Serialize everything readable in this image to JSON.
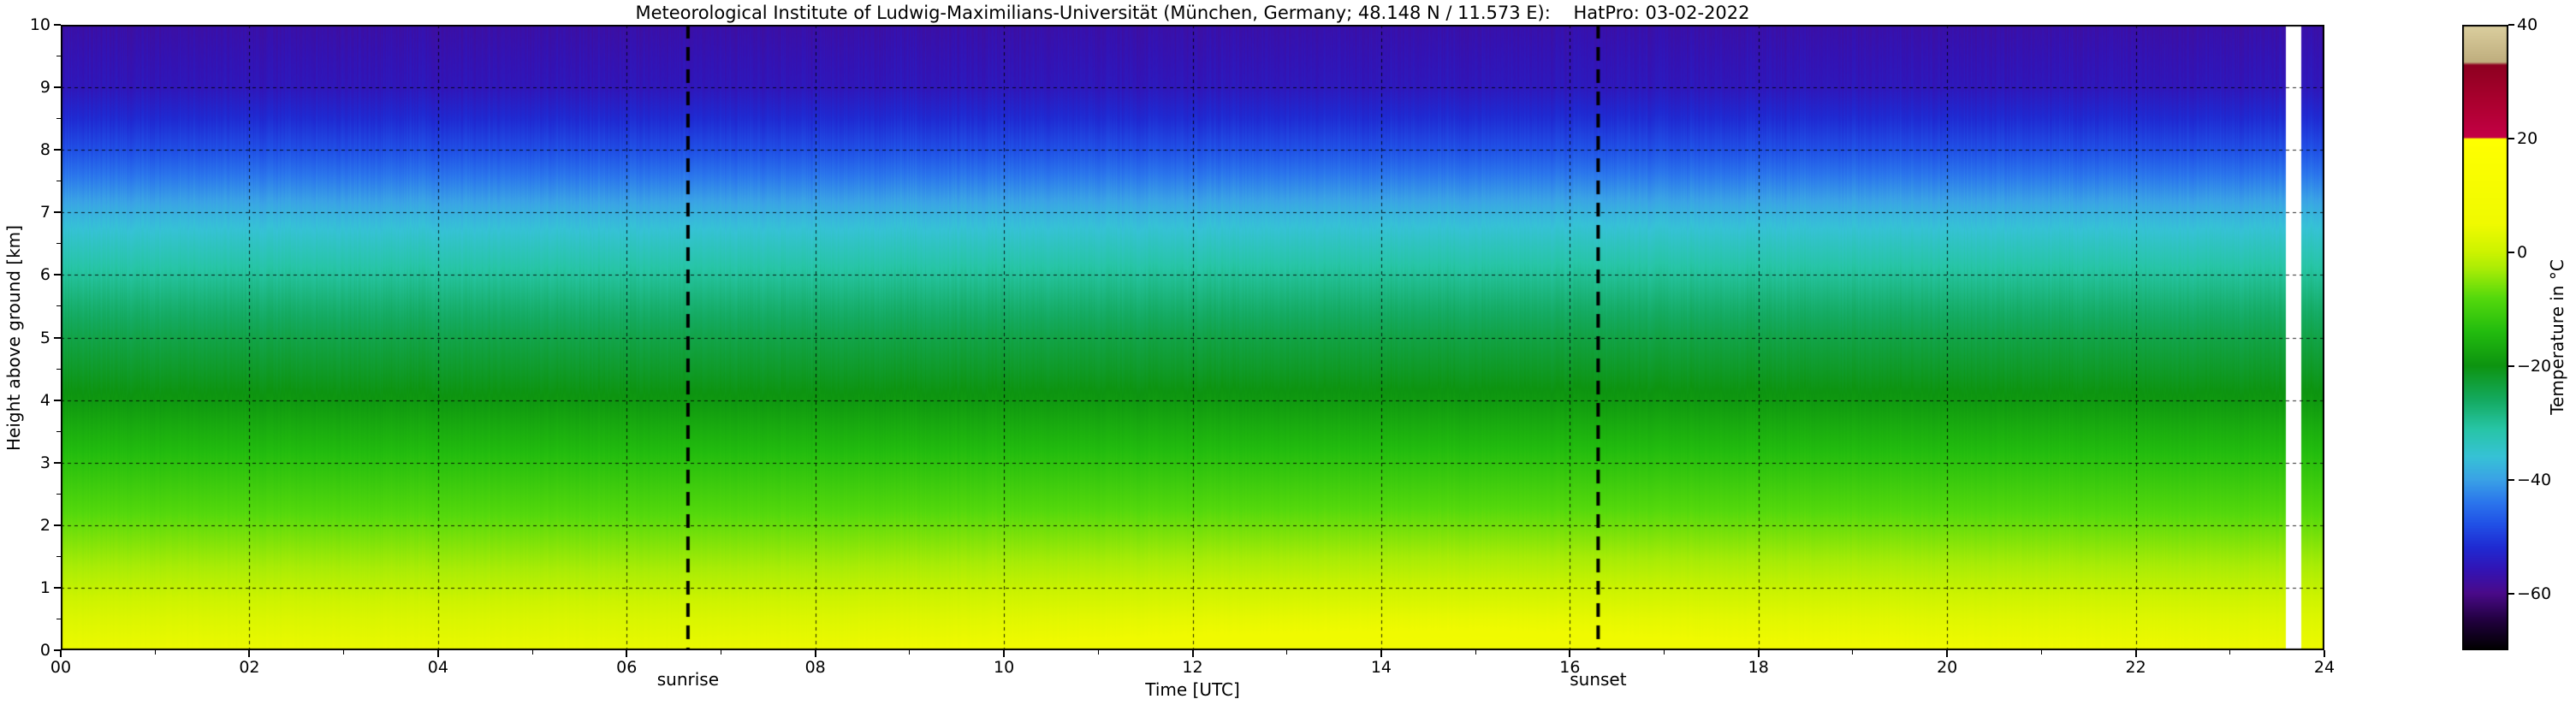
{
  "figure": {
    "background": "#ffffff",
    "frame_color": "#000000"
  },
  "chart_data": {
    "type": "heatmap",
    "title": "Meteorological Institute of Ludwig-Maximilians-Universität (München, Germany; 48.148 N / 11.573 E):    HatPro: 03-02-2022",
    "xlabel": "Time [UTC]",
    "ylabel": "Height above ground [km]",
    "colorbar_label": "Temperature in  °C",
    "x_range": [
      0,
      24
    ],
    "y_range": [
      0,
      10
    ],
    "x_tick_values": [
      0,
      2,
      4,
      6,
      8,
      10,
      12,
      14,
      16,
      18,
      20,
      22,
      24
    ],
    "x_tick_labels": [
      "00",
      "02",
      "04",
      "06",
      "08",
      "10",
      "12",
      "14",
      "16",
      "18",
      "20",
      "22",
      "24"
    ],
    "y_tick_values": [
      0,
      1,
      2,
      3,
      4,
      5,
      6,
      7,
      8,
      9,
      10
    ],
    "y_tick_labels": [
      "0",
      "1",
      "2",
      "3",
      "4",
      "5",
      "6",
      "7",
      "8",
      "9",
      "10"
    ],
    "colorbar_range": [
      -70,
      40
    ],
    "colorbar_tick_values": [
      40,
      20,
      0,
      -20,
      -40,
      -60
    ],
    "colorbar_tick_labels": [
      "40",
      "20",
      "0",
      "−20",
      "−40",
      "−60"
    ],
    "grid": {
      "h_lines": [
        1,
        2,
        3,
        4,
        5,
        6,
        7,
        8,
        9
      ],
      "v_lines": [
        2,
        4,
        6,
        8,
        10,
        12,
        14,
        16,
        18,
        20,
        22
      ],
      "style": "dashed",
      "color": "#000000"
    },
    "sunrise": {
      "label": "sunrise",
      "time": 6.65
    },
    "sunset": {
      "label": "sunset",
      "time": 16.3
    },
    "sun_line": {
      "color": "#000000",
      "style": "dashed"
    },
    "data_gap": {
      "start": 23.6,
      "end": 23.76,
      "color": "#ffffff"
    },
    "times": [
      0,
      3,
      6,
      9,
      12,
      15,
      18,
      21,
      24
    ],
    "heights": [
      0,
      0.5,
      1,
      1.5,
      2,
      2.5,
      3,
      3.5,
      4,
      4.5,
      5,
      5.5,
      6,
      6.5,
      7,
      7.5,
      8,
      8.5,
      9,
      9.5,
      10
    ],
    "temperature": [
      [
        4.6,
        4.3,
        4.1,
        5.0,
        6.3,
        6.8,
        5.6,
        5.0,
        4.7
      ],
      [
        2.2,
        2.0,
        1.8,
        2.5,
        3.6,
        4.0,
        3.1,
        2.6,
        2.4
      ],
      [
        -0.9,
        -1.1,
        -1.3,
        -0.8,
        -0.1,
        0.1,
        -0.5,
        -0.8,
        -0.9
      ],
      [
        -3.9,
        -4.0,
        -4.2,
        -3.8,
        -3.3,
        -3.1,
        -3.5,
        -3.8,
        -3.9
      ],
      [
        -6.9,
        -7.0,
        -7.1,
        -6.8,
        -6.5,
        -6.4,
        -6.7,
        -6.9,
        -7.0
      ],
      [
        -9.9,
        -10.0,
        -10.0,
        -9.8,
        -9.6,
        -9.5,
        -9.7,
        -9.9,
        -10.0
      ],
      [
        -12.9,
        -13.0,
        -13.0,
        -12.8,
        -12.7,
        -12.6,
        -12.8,
        -12.9,
        -13.0
      ],
      [
        -16.0,
        -16.1,
        -16.1,
        -16.0,
        -15.8,
        -15.8,
        -15.9,
        -16.0,
        -16.0
      ],
      [
        -19.4,
        -19.5,
        -19.5,
        -19.4,
        -19.2,
        -19.2,
        -19.3,
        -19.4,
        -19.4
      ],
      [
        -21.9,
        -22.0,
        -22.0,
        -21.9,
        -21.8,
        -21.7,
        -21.8,
        -21.9,
        -21.9
      ],
      [
        -24.2,
        -24.3,
        -24.3,
        -24.2,
        -24.0,
        -24.0,
        -24.1,
        -24.2,
        -24.2
      ],
      [
        -27.0,
        -27.1,
        -27.1,
        -27.0,
        -26.9,
        -26.8,
        -26.9,
        -27.0,
        -27.0
      ],
      [
        -30.2,
        -30.3,
        -30.3,
        -30.2,
        -30.0,
        -30.0,
        -30.1,
        -30.2,
        -30.2
      ],
      [
        -33.9,
        -34.0,
        -34.0,
        -33.9,
        -33.8,
        -33.7,
        -33.8,
        -33.9,
        -33.9
      ],
      [
        -38.1,
        -38.2,
        -38.2,
        -38.1,
        -37.9,
        -37.9,
        -38.0,
        -38.1,
        -38.1
      ],
      [
        -43.0,
        -43.1,
        -43.1,
        -43.0,
        -42.8,
        -42.8,
        -42.9,
        -43.0,
        -43.0
      ],
      [
        -48.0,
        -48.1,
        -48.1,
        -48.0,
        -47.8,
        -47.8,
        -47.9,
        -48.0,
        -48.0
      ],
      [
        -51.9,
        -52.0,
        -52.0,
        -51.9,
        -51.8,
        -51.7,
        -51.8,
        -51.9,
        -51.9
      ],
      [
        -55.2,
        -55.3,
        -55.3,
        -55.2,
        -55.0,
        -55.0,
        -55.1,
        -55.2,
        -55.2
      ],
      [
        -56.1,
        -56.2,
        -56.2,
        -56.1,
        -56.0,
        -55.9,
        -56.0,
        -56.1,
        -56.1
      ],
      [
        -57.2,
        -57.3,
        -57.3,
        -57.2,
        -57.0,
        -57.0,
        -57.1,
        -57.2,
        -57.2
      ]
    ],
    "colormap_stops": [
      [
        -70,
        "#000000"
      ],
      [
        -65,
        "#20003c"
      ],
      [
        -60,
        "#4a0a8a"
      ],
      [
        -56,
        "#3313b4"
      ],
      [
        -52,
        "#1f2ad2"
      ],
      [
        -48,
        "#2050e6"
      ],
      [
        -44,
        "#2b76ec"
      ],
      [
        -40,
        "#3aa2e6"
      ],
      [
        -36,
        "#36c2d6"
      ],
      [
        -31,
        "#27c5a5"
      ],
      [
        -26,
        "#14aa60"
      ],
      [
        -20,
        "#0d9410"
      ],
      [
        -14,
        "#22bc0e"
      ],
      [
        -8,
        "#55d90c"
      ],
      [
        -3,
        "#a8ec06"
      ],
      [
        0,
        "#ccf300"
      ],
      [
        5,
        "#f0fa00"
      ],
      [
        20,
        "#ffff00"
      ],
      [
        20.2,
        "#c40046"
      ],
      [
        26,
        "#ad0030"
      ],
      [
        33,
        "#8d0020"
      ],
      [
        33.5,
        "#bfae7e"
      ],
      [
        40,
        "#dbcf9f"
      ]
    ],
    "legend_position": "right-colorbar",
    "grid_on": true
  }
}
